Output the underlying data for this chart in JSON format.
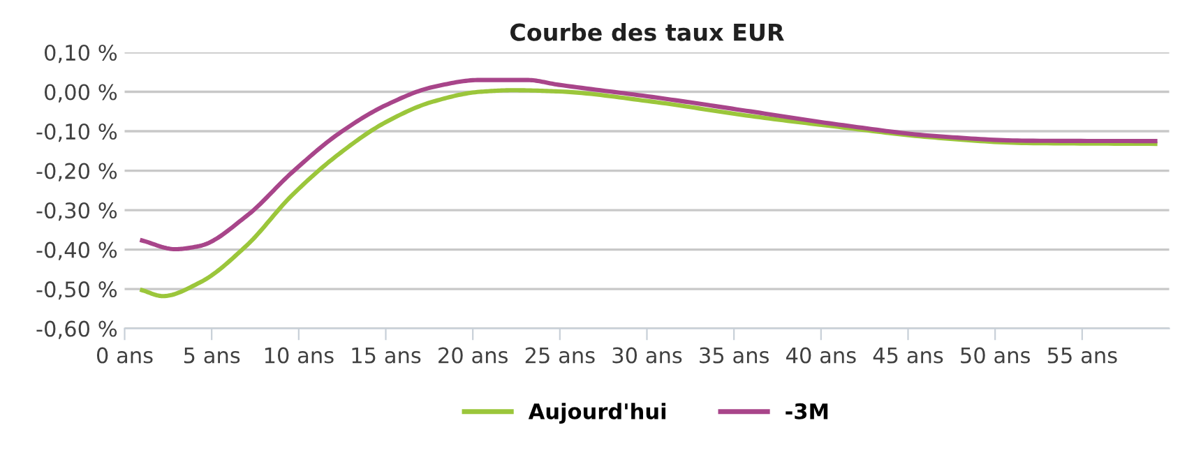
{
  "chart_data": {
    "type": "line",
    "title": "Courbe des taux EUR",
    "xlim": [
      0,
      60
    ],
    "xticks": [
      {
        "value": 0,
        "label": "0 ans"
      },
      {
        "value": 5,
        "label": "5 ans"
      },
      {
        "value": 10,
        "label": "10 ans"
      },
      {
        "value": 15,
        "label": "15 ans"
      },
      {
        "value": 20,
        "label": "20 ans"
      },
      {
        "value": 25,
        "label": "25 ans"
      },
      {
        "value": 30,
        "label": "30 ans"
      },
      {
        "value": 35,
        "label": "35 ans"
      },
      {
        "value": 40,
        "label": "40 ans"
      },
      {
        "value": 45,
        "label": "45 ans"
      },
      {
        "value": 50,
        "label": "50 ans"
      },
      {
        "value": 55,
        "label": "55 ans"
      }
    ],
    "ylim": [
      -0.6,
      0.1
    ],
    "yticks": [
      {
        "value": -0.6,
        "label": "-0,60 %"
      },
      {
        "value": -0.5,
        "label": "-0,50 %"
      },
      {
        "value": -0.4,
        "label": "-0,40 %"
      },
      {
        "value": -0.3,
        "label": "-0,30 %"
      },
      {
        "value": -0.2,
        "label": "-0,20 %"
      },
      {
        "value": -0.1,
        "label": "-0,10 %"
      },
      {
        "value": 0,
        "label": "0,00 %"
      },
      {
        "value": 0.1,
        "label": "0,10 %"
      }
    ],
    "grid": "y",
    "legend": "bottom",
    "marker": "none",
    "line_style": "solid",
    "series": [
      {
        "name": "Aujourd'hui",
        "color": "#9bc63b",
        "x": [
          1,
          2.2,
          4.3,
          7,
          9.6,
          12.3,
          15,
          17.7,
          20.4,
          22.3,
          24.9,
          30.3,
          35.7,
          41,
          46.5,
          51.8,
          59.2
        ],
        "values": [
          -0.503,
          -0.518,
          -0.484,
          -0.39,
          -0.263,
          -0.158,
          -0.077,
          -0.025,
          0.0,
          0.004,
          0.001,
          -0.025,
          -0.06,
          -0.089,
          -0.116,
          -0.13,
          -0.132
        ]
      },
      {
        "name": "-3M",
        "color": "#a8458a",
        "x": [
          1,
          2.9,
          4.3,
          7,
          9.6,
          12.3,
          15,
          17.7,
          20.4,
          23.1,
          24.9,
          30.3,
          35.7,
          41,
          46.5,
          51.8,
          59.2
        ],
        "values": [
          -0.377,
          -0.399,
          -0.391,
          -0.315,
          -0.205,
          -0.106,
          -0.034,
          0.012,
          0.03,
          0.03,
          0.018,
          -0.013,
          -0.048,
          -0.083,
          -0.112,
          -0.124,
          -0.125
        ]
      }
    ]
  }
}
